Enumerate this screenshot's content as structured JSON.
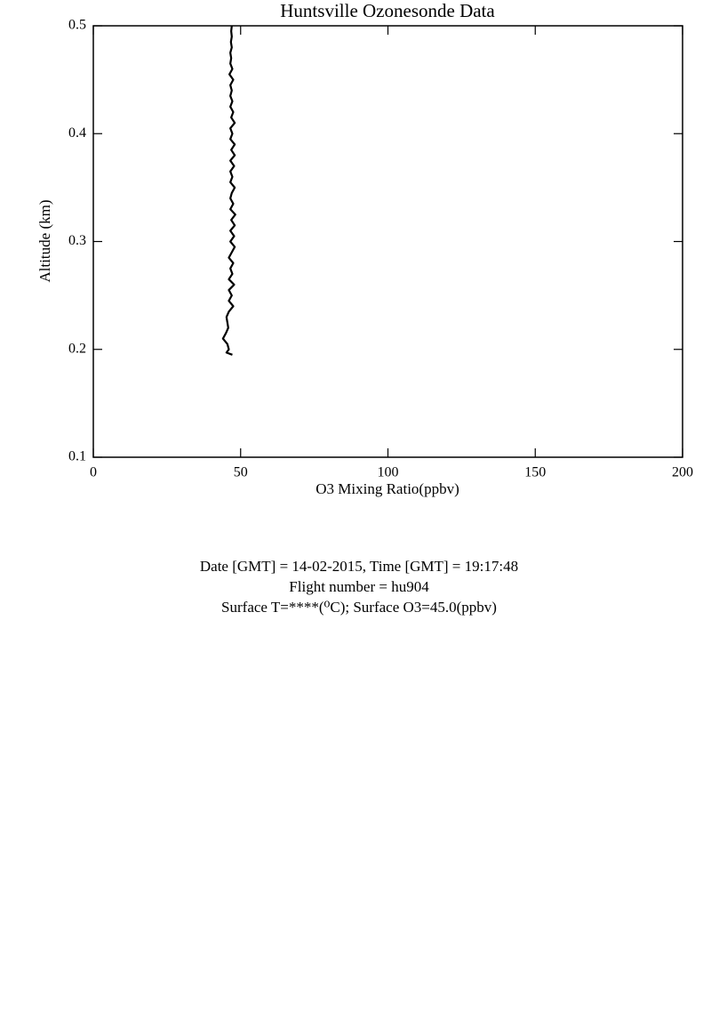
{
  "chart_data": {
    "type": "line",
    "title": "Huntsville Ozonesonde Data",
    "xlabel": "O3 Mixing Ratio(ppbv)",
    "ylabel": "Altitude (km)",
    "xlim": [
      0,
      200
    ],
    "ylim": [
      0.1,
      0.5
    ],
    "xticks": [
      0,
      50,
      100,
      150,
      200
    ],
    "yticks": [
      0.1,
      0.2,
      0.3,
      0.4,
      0.5
    ],
    "series": [
      {
        "color": "#000000",
        "x": [
          47.2,
          45.2,
          46,
          45.5,
          44,
          45,
          45.8,
          45.5,
          45.2,
          46,
          47.5,
          46,
          47,
          46,
          47.8,
          46,
          47.2,
          46.5,
          47.5,
          46,
          47,
          48,
          46.5,
          47.8,
          46.5,
          48,
          46.8,
          48.2,
          46.5,
          47.5,
          46.5,
          47,
          48,
          46.5,
          47.2,
          46.5,
          47.8,
          46.5,
          48,
          46.8,
          48,
          46.5,
          47.2,
          46.5,
          48,
          46.8,
          47.5,
          46.5,
          47.2,
          46.5,
          47,
          46.5,
          47.5,
          46.2,
          47.2,
          46.5,
          46.8,
          46.5,
          47,
          46.7,
          47,
          46.8,
          47
        ],
        "values": [
          0.195,
          0.197,
          0.2,
          0.205,
          0.21,
          0.215,
          0.22,
          0.225,
          0.23,
          0.235,
          0.24,
          0.245,
          0.25,
          0.255,
          0.26,
          0.265,
          0.27,
          0.275,
          0.28,
          0.285,
          0.29,
          0.295,
          0.3,
          0.305,
          0.31,
          0.315,
          0.32,
          0.325,
          0.33,
          0.335,
          0.34,
          0.345,
          0.35,
          0.355,
          0.36,
          0.365,
          0.37,
          0.375,
          0.38,
          0.385,
          0.39,
          0.395,
          0.4,
          0.405,
          0.41,
          0.415,
          0.42,
          0.425,
          0.43,
          0.435,
          0.44,
          0.445,
          0.45,
          0.455,
          0.46,
          0.465,
          0.47,
          0.475,
          0.48,
          0.485,
          0.49,
          0.495,
          0.5
        ]
      }
    ],
    "info_lines": [
      "Date [GMT] = 14-02-2015,  Time [GMT] = 19:17:48",
      "Flight number = hu904",
      "Surface T=****(⁰C); Surface O3=45.0(ppbv)"
    ]
  }
}
